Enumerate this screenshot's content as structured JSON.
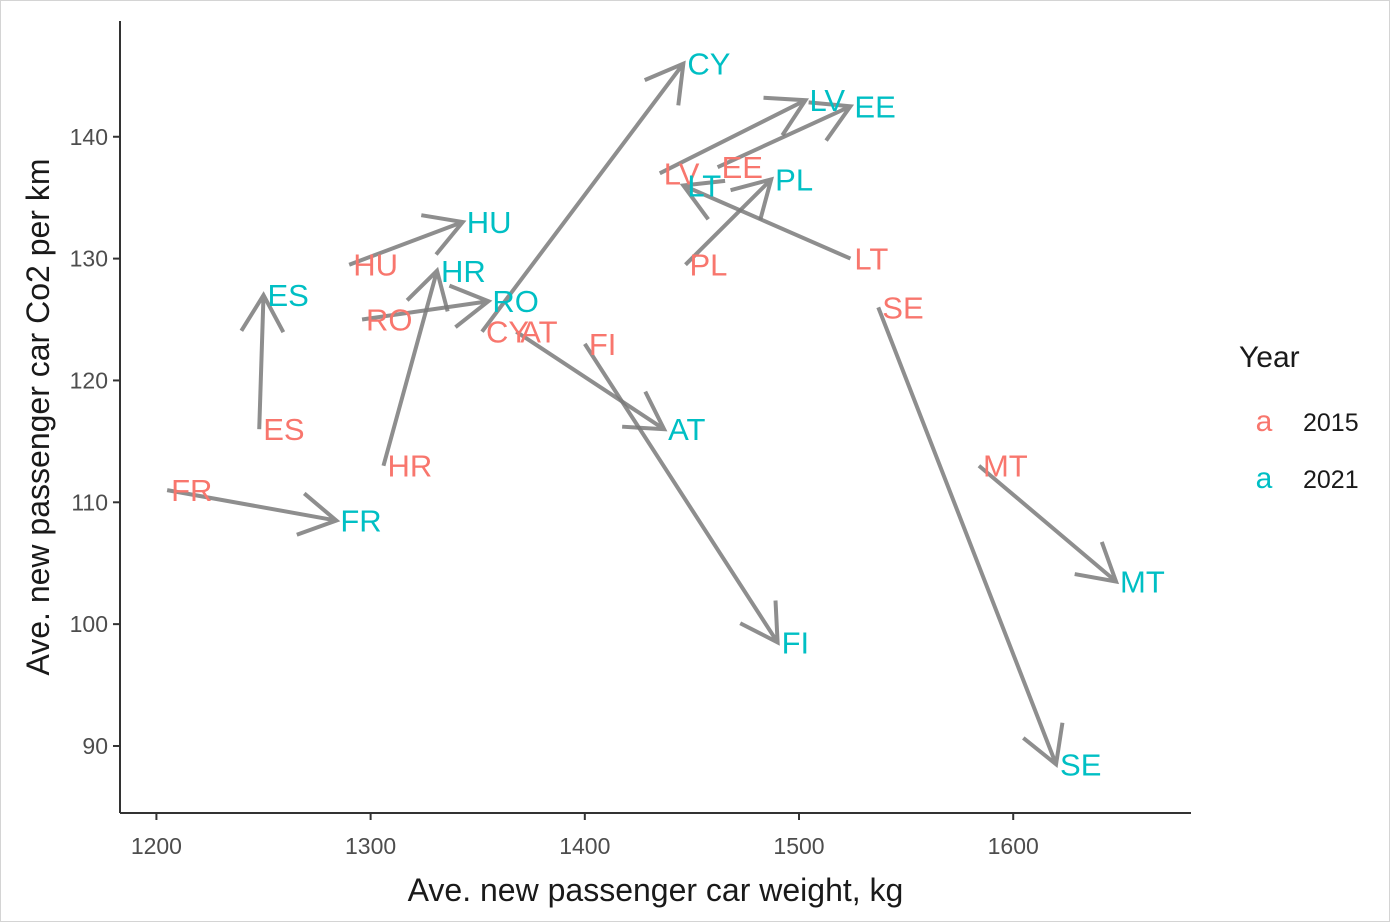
{
  "chart_data": {
    "type": "scatter",
    "title": "",
    "xlabel": "Ave. new passenger car weight, kg",
    "ylabel": "Ave. new passenger car Co2 per km",
    "xlim": [
      1183,
      1683
    ],
    "ylim": [
      84.5,
      149.5
    ],
    "x_ticks": [
      1200,
      1300,
      1400,
      1500,
      1600
    ],
    "y_ticks": [
      90,
      100,
      110,
      120,
      130,
      140
    ],
    "grid": false,
    "legend": {
      "title": "Year",
      "position": "right",
      "key_glyph": "a",
      "entries": [
        {
          "name": "2015",
          "color": "#F8766D"
        },
        {
          "name": "2021",
          "color": "#00BFC4"
        }
      ]
    },
    "arrow_color": "#7a7a7a",
    "series": [
      {
        "name": "2015",
        "color": "#F8766D",
        "points": [
          {
            "label": "FR",
            "x": 1205,
            "y": 111
          },
          {
            "label": "ES",
            "x": 1248,
            "y": 116
          },
          {
            "label": "HR",
            "x": 1306,
            "y": 113
          },
          {
            "label": "HU",
            "x": 1290,
            "y": 129.5
          },
          {
            "label": "RO",
            "x": 1296,
            "y": 125
          },
          {
            "label": "CY",
            "x": 1352,
            "y": 124
          },
          {
            "label": "AT",
            "x": 1368,
            "y": 124
          },
          {
            "label": "FI",
            "x": 1400,
            "y": 123
          },
          {
            "label": "LV",
            "x": 1435,
            "y": 137
          },
          {
            "label": "EE",
            "x": 1462,
            "y": 137.5
          },
          {
            "label": "PL",
            "x": 1447,
            "y": 129.5
          },
          {
            "label": "LT",
            "x": 1524,
            "y": 130
          },
          {
            "label": "SE",
            "x": 1537,
            "y": 126
          },
          {
            "label": "MT",
            "x": 1584,
            "y": 113
          }
        ]
      },
      {
        "name": "2021",
        "color": "#00BFC4",
        "points": [
          {
            "label": "FR",
            "x": 1284,
            "y": 108.5
          },
          {
            "label": "ES",
            "x": 1250,
            "y": 127
          },
          {
            "label": "HR",
            "x": 1331,
            "y": 129
          },
          {
            "label": "HU",
            "x": 1343,
            "y": 133
          },
          {
            "label": "RO",
            "x": 1355,
            "y": 126.5
          },
          {
            "label": "CY",
            "x": 1446,
            "y": 146
          },
          {
            "label": "AT",
            "x": 1437,
            "y": 116
          },
          {
            "label": "FI",
            "x": 1490,
            "y": 98.5
          },
          {
            "label": "LV",
            "x": 1503,
            "y": 143
          },
          {
            "label": "EE",
            "x": 1524,
            "y": 142.5
          },
          {
            "label": "PL",
            "x": 1487,
            "y": 136.5
          },
          {
            "label": "LT",
            "x": 1446,
            "y": 136
          },
          {
            "label": "SE",
            "x": 1620,
            "y": 88.5
          },
          {
            "label": "MT",
            "x": 1648,
            "y": 103.5
          }
        ]
      }
    ]
  }
}
